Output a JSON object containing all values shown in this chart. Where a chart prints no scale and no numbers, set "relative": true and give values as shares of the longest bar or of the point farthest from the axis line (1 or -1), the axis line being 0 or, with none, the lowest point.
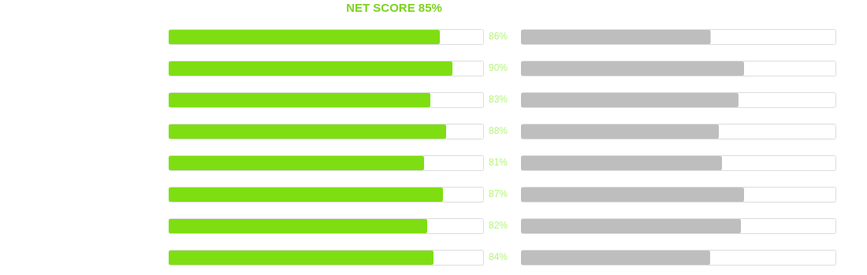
{
  "chart_data": [
    {
      "type": "bar",
      "orientation": "horizontal",
      "title": "NET SCORE 85%",
      "categories": [
        null,
        null,
        null,
        null,
        null,
        null,
        null,
        null
      ],
      "values": [
        86,
        90,
        83,
        88,
        81,
        87,
        82,
        84
      ],
      "color": "#7ede12",
      "value_labels": [
        "86%",
        "90%",
        "83%",
        "88%",
        "81%",
        "87%",
        "82%",
        "84%"
      ],
      "xlim": [
        0,
        100
      ],
      "tick_labels": false
    },
    {
      "type": "bar",
      "orientation": "horizontal",
      "relative": true,
      "categories": [
        null,
        null,
        null,
        null,
        null,
        null,
        null,
        null
      ],
      "values": [
        0.85,
        1,
        0.975,
        0.887,
        0.901,
        1,
        0.986,
        0.848
      ],
      "color": "#bebebe",
      "tick_labels": false
    }
  ]
}
